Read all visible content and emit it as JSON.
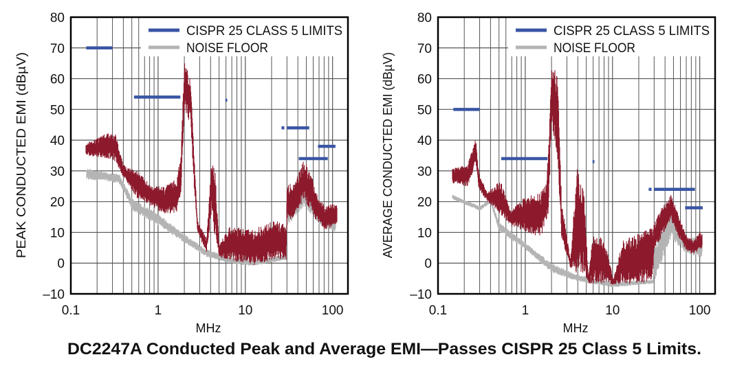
{
  "title": "DC2247A Conducted Peak and Average EMI—Passes CISPR 25 Class 5 Limits.",
  "colors": {
    "limit": "#3a55a4",
    "noise_floor": "#b4b4b4",
    "emi": "#8c1a2c",
    "grid": "#555555"
  },
  "chart_data": [
    {
      "type": "area",
      "xscale": "log",
      "xlabel": "MHz",
      "ylabel": "PEAK CONDUCTED EMI (dBµV)",
      "xlim": [
        0.1,
        150
      ],
      "ylim": [
        -10,
        80
      ],
      "xticks": [
        {
          "v": 0.1,
          "label": "0.1"
        },
        {
          "v": 1,
          "label": "1"
        },
        {
          "v": 10,
          "label": "10"
        },
        {
          "v": 100,
          "label": "100"
        }
      ],
      "yticks": [
        {
          "v": -10,
          "label": "–10"
        },
        {
          "v": 0,
          "label": "0"
        },
        {
          "v": 10,
          "label": "10"
        },
        {
          "v": 20,
          "label": "20"
        },
        {
          "v": 30,
          "label": "30"
        },
        {
          "v": 40,
          "label": "40"
        },
        {
          "v": 50,
          "label": "50"
        },
        {
          "v": 60,
          "label": "60"
        },
        {
          "v": 70,
          "label": "70"
        },
        {
          "v": 80,
          "label": "80"
        }
      ],
      "grid": true,
      "legend": {
        "placement": "top-right",
        "entries": [
          {
            "label": "CISPR 25 CLASS 5 LIMITS",
            "color": "#3a55a4"
          },
          {
            "label": "NOISE FLOOR",
            "color": "#b4b4b4"
          }
        ]
      },
      "limits": [
        {
          "x_start": 0.15,
          "x_end": 0.3,
          "y": 70
        },
        {
          "x_start": 0.53,
          "x_end": 1.8,
          "y": 54
        },
        {
          "x_start": 5.9,
          "x_end": 6.2,
          "y": 53
        },
        {
          "x_start": 26,
          "x_end": 28,
          "y": 44
        },
        {
          "x_start": 30,
          "x_end": 54,
          "y": 44
        },
        {
          "x_start": 41,
          "x_end": 88,
          "y": 34
        },
        {
          "x_start": 68,
          "x_end": 108,
          "y": 38
        }
      ],
      "series": [
        {
          "name": "NOISE FLOOR",
          "color": "#b4b4b4",
          "x": [
            0.15,
            0.25,
            0.36,
            0.51,
            1.06,
            1.97,
            3.6,
            6.6,
            12,
            29,
            30,
            47,
            70,
            106,
            110
          ],
          "y_max": [
            31,
            29.6,
            29,
            21,
            15.6,
            9.6,
            4.5,
            2,
            1,
            3,
            21,
            27,
            17,
            15,
            15
          ],
          "y_min": [
            27,
            26.7,
            25.8,
            17,
            12,
            6.7,
            2,
            0,
            -1,
            1,
            12,
            18.5,
            12.6,
            10,
            10
          ]
        },
        {
          "name": "PEAK EMI",
          "color": "#8c1a2c",
          "x": [
            0.149,
            0.27,
            0.326,
            0.4,
            0.58,
            0.84,
            1.2,
            1.64,
            1.83,
            2.0,
            2.36,
            2.56,
            2.83,
            3.6,
            4.1,
            4.5,
            5.0,
            6.6,
            12,
            22,
            29.5,
            30,
            38,
            47,
            57,
            70,
            83,
            106,
            113
          ],
          "y_max": [
            39,
            42.6,
            42,
            32,
            30,
            25,
            25,
            27.5,
            35.6,
            66,
            60,
            38,
            14,
            8,
            33.5,
            30.5,
            6,
            12,
            11,
            14,
            12.6,
            25.2,
            27,
            33.7,
            29,
            20.8,
            18.5,
            19.6,
            19
          ],
          "y_min": [
            35,
            34,
            33,
            28,
            21,
            18.5,
            15.7,
            16,
            23,
            50,
            45,
            27,
            9.6,
            3.6,
            15.7,
            8,
            2,
            1,
            -0.8,
            1,
            1,
            12.6,
            16,
            20.8,
            16,
            12.6,
            11,
            11.8,
            12
          ]
        }
      ]
    },
    {
      "type": "area",
      "xscale": "log",
      "xlabel": "MHz",
      "ylabel": "AVERAGE CONDUCTED EMI (dBµV)",
      "xlim": [
        0.1,
        150
      ],
      "ylim": [
        -10,
        80
      ],
      "xticks": [
        {
          "v": 0.1,
          "label": "0.1"
        },
        {
          "v": 1,
          "label": "1"
        },
        {
          "v": 10,
          "label": "10"
        },
        {
          "v": 100,
          "label": "100"
        }
      ],
      "yticks": [
        {
          "v": -10,
          "label": "–10"
        },
        {
          "v": 0,
          "label": "0"
        },
        {
          "v": 10,
          "label": "10"
        },
        {
          "v": 20,
          "label": "20"
        },
        {
          "v": 30,
          "label": "30"
        },
        {
          "v": 40,
          "label": "40"
        },
        {
          "v": 50,
          "label": "50"
        },
        {
          "v": 60,
          "label": "60"
        },
        {
          "v": 70,
          "label": "70"
        },
        {
          "v": 80,
          "label": "80"
        }
      ],
      "grid": true,
      "legend": {
        "placement": "top-right",
        "entries": [
          {
            "label": "CISPR 25 CLASS 5 LIMITS",
            "color": "#3a55a4"
          },
          {
            "label": "NOISE FLOOR",
            "color": "#b4b4b4"
          }
        ]
      },
      "limits": [
        {
          "x_start": 0.15,
          "x_end": 0.3,
          "y": 50
        },
        {
          "x_start": 0.53,
          "x_end": 1.8,
          "y": 34
        },
        {
          "x_start": 5.9,
          "x_end": 6.2,
          "y": 33
        },
        {
          "x_start": 26,
          "x_end": 28,
          "y": 24
        },
        {
          "x_start": 30,
          "x_end": 88,
          "y": 24
        },
        {
          "x_start": 68,
          "x_end": 108,
          "y": 18
        }
      ],
      "series": [
        {
          "name": "NOISE FLOOR",
          "color": "#b4b4b4",
          "x": [
            0.146,
            0.3,
            0.4,
            0.5,
            1.0,
            2.0,
            4,
            10,
            29,
            30,
            47,
            71,
            100,
            108
          ],
          "y_max": [
            22.3,
            18.5,
            21,
            13.4,
            6.7,
            0,
            -3.8,
            -6,
            -5.4,
            5,
            17.8,
            8,
            9,
            9
          ],
          "y_min": [
            20.8,
            17,
            19.5,
            10.4,
            4.5,
            -3,
            -6,
            -7.9,
            -6.7,
            -6,
            8,
            3,
            2,
            2
          ]
        },
        {
          "name": "AVERAGE EMI",
          "color": "#8c1a2c",
          "x": [
            0.146,
            0.218,
            0.27,
            0.295,
            0.37,
            0.52,
            0.68,
            0.98,
            1.5,
            1.75,
            1.85,
            2.0,
            2.37,
            2.6,
            3.3,
            3.9,
            4.7,
            5.3,
            6.0,
            8.1,
            10.2,
            13.3,
            20,
            29,
            30,
            36,
            47,
            56,
            71,
            85,
            101,
            108
          ],
          "y_max": [
            30.8,
            32,
            41,
            29,
            23,
            27,
            17,
            21.5,
            23,
            26,
            39,
            65,
            61,
            21,
            0.7,
            31.5,
            23,
            -4,
            9.6,
            8,
            -5.4,
            8,
            9.6,
            11.8,
            12.6,
            17.8,
            22.3,
            16.3,
            9,
            7.4,
            10.4,
            10
          ],
          "y_min": [
            26,
            24.8,
            32,
            23.7,
            20,
            16,
            12,
            10.4,
            8,
            14,
            15.7,
            47,
            31,
            8,
            -1.5,
            -3.8,
            -4.5,
            -6.7,
            -6.7,
            -6.7,
            -7,
            -6.7,
            -6.7,
            -5.7,
            4.5,
            8,
            14,
            9,
            3.6,
            2.9,
            4.5,
            4.5
          ]
        }
      ]
    }
  ]
}
